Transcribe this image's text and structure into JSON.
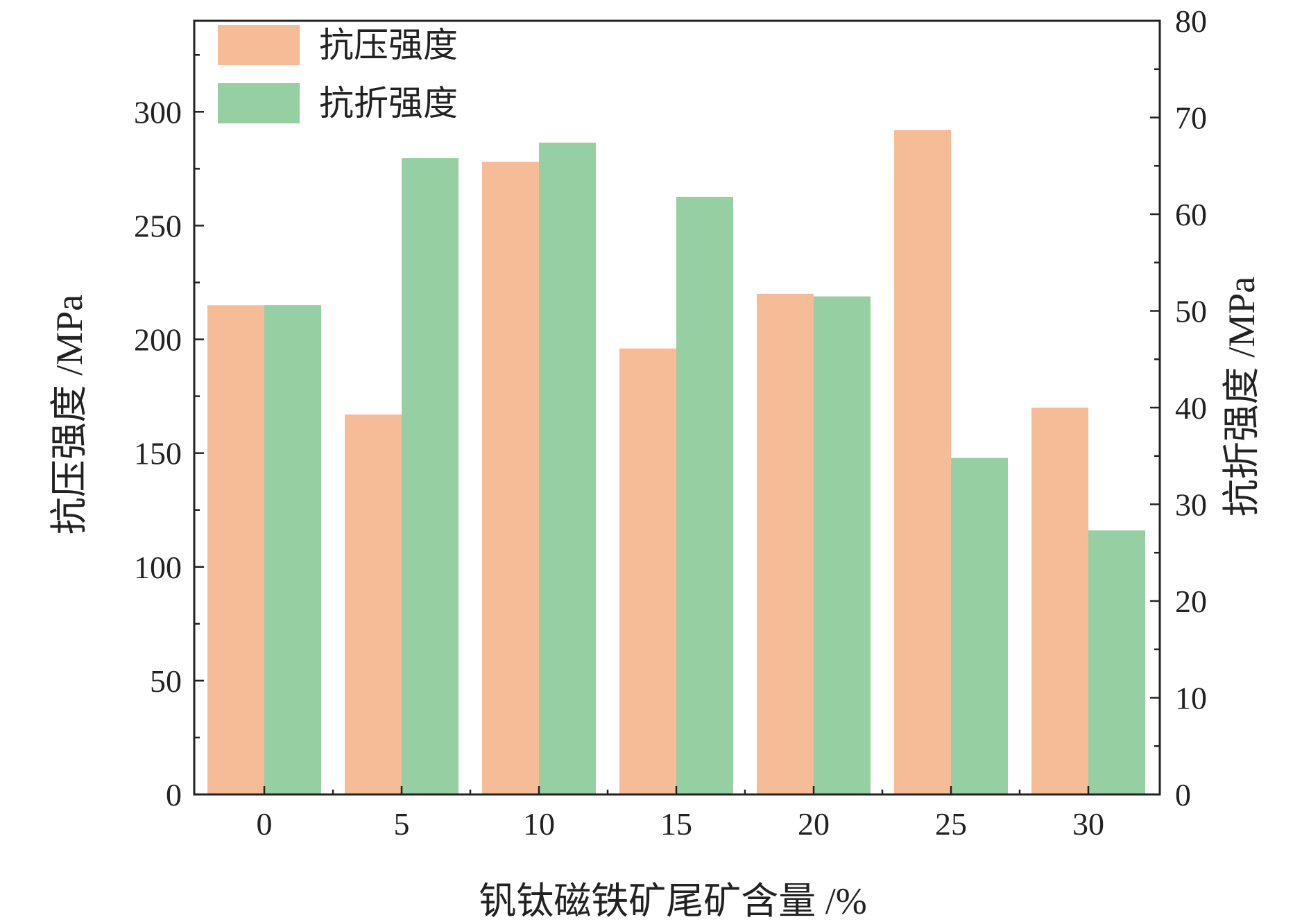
{
  "chart_data": {
    "type": "bar",
    "xlabel": "钒钛磁铁矿尾矿含量  /%",
    "ylabel_left": "抗压强度 /MPa",
    "ylabel_right": "抗折强度 /MPa",
    "categories": [
      "0",
      "5",
      "10",
      "15",
      "20",
      "25",
      "30"
    ],
    "ylim_left": [
      0,
      340
    ],
    "ylim_right": [
      0,
      80
    ],
    "yticks_left": [
      "0",
      "50",
      "100",
      "150",
      "200",
      "250",
      "300"
    ],
    "yticks_right": [
      "0",
      "10",
      "20",
      "30",
      "40",
      "50",
      "60",
      "70",
      "80"
    ],
    "grid": false,
    "legend_position": "top-left",
    "series": [
      {
        "name": "抗压强度",
        "axis": "left",
        "color": "#f6bb97",
        "values": [
          215,
          167,
          278,
          196,
          220,
          292,
          170
        ]
      },
      {
        "name": "抗折强度",
        "axis": "right",
        "color": "#96cfa1",
        "values": [
          50.6,
          65.8,
          67.4,
          61.8,
          51.5,
          34.8,
          27.3
        ]
      }
    ]
  }
}
